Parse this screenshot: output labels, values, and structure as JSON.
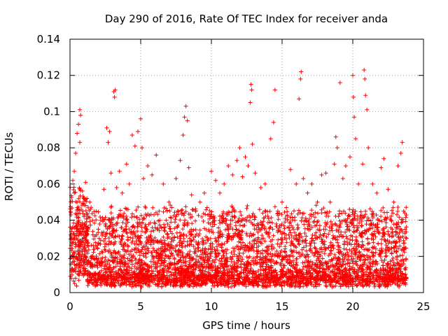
{
  "chart_data": {
    "type": "scatter",
    "title": "Day 290 of 2016, Rate Of TEC Index for receiver anda",
    "xlabel": "GPS time / hours",
    "ylabel": "ROTI / TECUs",
    "xlim": [
      0,
      25
    ],
    "ylim": [
      0,
      0.14
    ],
    "grid": true,
    "marker": "+",
    "color": "#ff0000",
    "xticks": [
      0,
      5,
      10,
      15,
      20,
      25
    ],
    "xtick_labels": [
      "0",
      "5",
      "10",
      "15",
      "20",
      "25"
    ],
    "yticks": [
      0,
      0.02,
      0.04,
      0.06,
      0.08,
      0.1,
      0.12,
      0.14
    ],
    "ytick_labels": [
      "0",
      "0.02",
      "0.04",
      "0.06",
      "0.08",
      "0.1",
      "0.12",
      "0.14"
    ],
    "series": [
      {
        "name": "ROTI",
        "points": [
          [
            0.2,
            0.062
          ],
          [
            0.3,
            0.067
          ],
          [
            0.4,
            0.077
          ],
          [
            0.5,
            0.088
          ],
          [
            0.6,
            0.093
          ],
          [
            0.7,
            0.101
          ],
          [
            0.75,
            0.098
          ],
          [
            0.7,
            0.083
          ],
          [
            0.3,
            0.055
          ],
          [
            0.5,
            0.05
          ],
          [
            0.9,
            0.045
          ],
          [
            1.2,
            0.052
          ],
          [
            1.4,
            0.05
          ],
          [
            1.6,
            0.04
          ],
          [
            2.0,
            0.035
          ],
          [
            2.4,
            0.057
          ],
          [
            2.6,
            0.091
          ],
          [
            2.7,
            0.083
          ],
          [
            2.8,
            0.089
          ],
          [
            2.9,
            0.066
          ],
          [
            3.1,
            0.111
          ],
          [
            3.15,
            0.108
          ],
          [
            3.2,
            0.112
          ],
          [
            3.3,
            0.058
          ],
          [
            3.5,
            0.067
          ],
          [
            3.7,
            0.055
          ],
          [
            4.0,
            0.071
          ],
          [
            4.2,
            0.06
          ],
          [
            4.4,
            0.087
          ],
          [
            4.6,
            0.081
          ],
          [
            4.8,
            0.089
          ],
          [
            5.0,
            0.096
          ],
          [
            5.1,
            0.08
          ],
          [
            5.2,
            0.063
          ],
          [
            5.5,
            0.07
          ],
          [
            5.8,
            0.065
          ],
          [
            6.1,
            0.076
          ],
          [
            6.3,
            0.045
          ],
          [
            6.6,
            0.06
          ],
          [
            6.8,
            0.04
          ],
          [
            7.0,
            0.05
          ],
          [
            7.2,
            0.047
          ],
          [
            7.5,
            0.063
          ],
          [
            7.8,
            0.073
          ],
          [
            8.0,
            0.087
          ],
          [
            8.1,
            0.097
          ],
          [
            8.2,
            0.103
          ],
          [
            8.3,
            0.095
          ],
          [
            8.4,
            0.069
          ],
          [
            8.6,
            0.054
          ],
          [
            8.9,
            0.045
          ],
          [
            9.2,
            0.05
          ],
          [
            9.5,
            0.055
          ],
          [
            9.7,
            0.047
          ],
          [
            10.0,
            0.067
          ],
          [
            10.3,
            0.062
          ],
          [
            10.6,
            0.055
          ],
          [
            10.9,
            0.06
          ],
          [
            11.2,
            0.07
          ],
          [
            11.5,
            0.065
          ],
          [
            11.8,
            0.073
          ],
          [
            12.0,
            0.08
          ],
          [
            12.2,
            0.064
          ],
          [
            12.4,
            0.075
          ],
          [
            12.6,
            0.07
          ],
          [
            12.75,
            0.105
          ],
          [
            12.8,
            0.115
          ],
          [
            12.85,
            0.112
          ],
          [
            12.9,
            0.082
          ],
          [
            13.1,
            0.066
          ],
          [
            13.5,
            0.058
          ],
          [
            13.8,
            0.06
          ],
          [
            14.2,
            0.085
          ],
          [
            14.4,
            0.094
          ],
          [
            14.5,
            0.112
          ],
          [
            14.7,
            0.045
          ],
          [
            15.0,
            0.05
          ],
          [
            15.3,
            0.047
          ],
          [
            15.6,
            0.068
          ],
          [
            16.0,
            0.06
          ],
          [
            16.2,
            0.107
          ],
          [
            16.3,
            0.118
          ],
          [
            16.35,
            0.122
          ],
          [
            16.5,
            0.063
          ],
          [
            16.8,
            0.055
          ],
          [
            17.1,
            0.06
          ],
          [
            17.5,
            0.05
          ],
          [
            17.8,
            0.065
          ],
          [
            18.1,
            0.066
          ],
          [
            18.4,
            0.05
          ],
          [
            18.7,
            0.071
          ],
          [
            18.8,
            0.086
          ],
          [
            18.9,
            0.08
          ],
          [
            19.1,
            0.116
          ],
          [
            19.3,
            0.063
          ],
          [
            19.5,
            0.07
          ],
          [
            19.8,
            0.075
          ],
          [
            20.0,
            0.12
          ],
          [
            20.05,
            0.108
          ],
          [
            20.1,
            0.097
          ],
          [
            20.2,
            0.085
          ],
          [
            20.4,
            0.06
          ],
          [
            20.7,
            0.071
          ],
          [
            20.8,
            0.123
          ],
          [
            20.85,
            0.118
          ],
          [
            20.9,
            0.109
          ],
          [
            21.0,
            0.101
          ],
          [
            21.1,
            0.08
          ],
          [
            21.4,
            0.06
          ],
          [
            21.7,
            0.055
          ],
          [
            22.0,
            0.069
          ],
          [
            22.2,
            0.074
          ],
          [
            22.5,
            0.057
          ],
          [
            22.9,
            0.05
          ],
          [
            23.2,
            0.07
          ],
          [
            23.4,
            0.077
          ],
          [
            23.5,
            0.083
          ],
          [
            23.6,
            0.045
          ],
          [
            23.7,
            0.035
          ],
          [
            23.8,
            0.03
          ]
        ]
      }
    ]
  }
}
